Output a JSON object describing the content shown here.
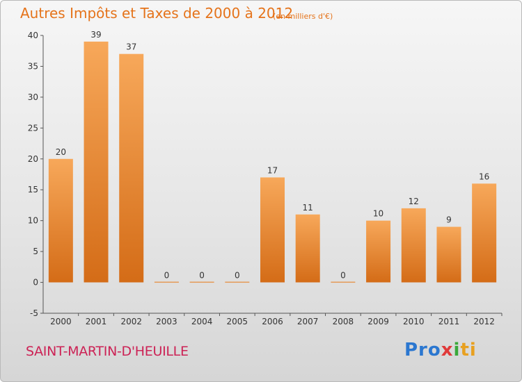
{
  "chart_data": {
    "type": "bar",
    "title": "Autres Impôts et Taxes de 2000 à 2012",
    "subtitle": "(en milliers d'€)",
    "categories": [
      "2000",
      "2001",
      "2002",
      "2003",
      "2004",
      "2005",
      "2006",
      "2007",
      "2008",
      "2009",
      "2010",
      "2011",
      "2012"
    ],
    "values": [
      20,
      39,
      37,
      0,
      0,
      0,
      17,
      11,
      0,
      10,
      12,
      9,
      16
    ],
    "data_labels": [
      "20",
      "39",
      "37",
      "0",
      "0",
      "0",
      "17",
      "11",
      "0",
      "10",
      "12",
      "9",
      "16"
    ],
    "xlabel": "",
    "ylabel": "",
    "ylim": [
      -5,
      40
    ],
    "yticks": [
      -5,
      0,
      5,
      10,
      15,
      20,
      25,
      30,
      35,
      40
    ],
    "grid": false,
    "legend": "none",
    "colors": {
      "bar_light": "#f7a85a",
      "bar_dark": "#d46c17",
      "title": "#e5731a",
      "commune": "#cc2255"
    }
  },
  "footer": {
    "commune": "SAINT-MARTIN-D'HEUILLE",
    "brand": {
      "p1": "Pro",
      "p2": "x",
      "p3": "i",
      "p4": "ti"
    }
  }
}
